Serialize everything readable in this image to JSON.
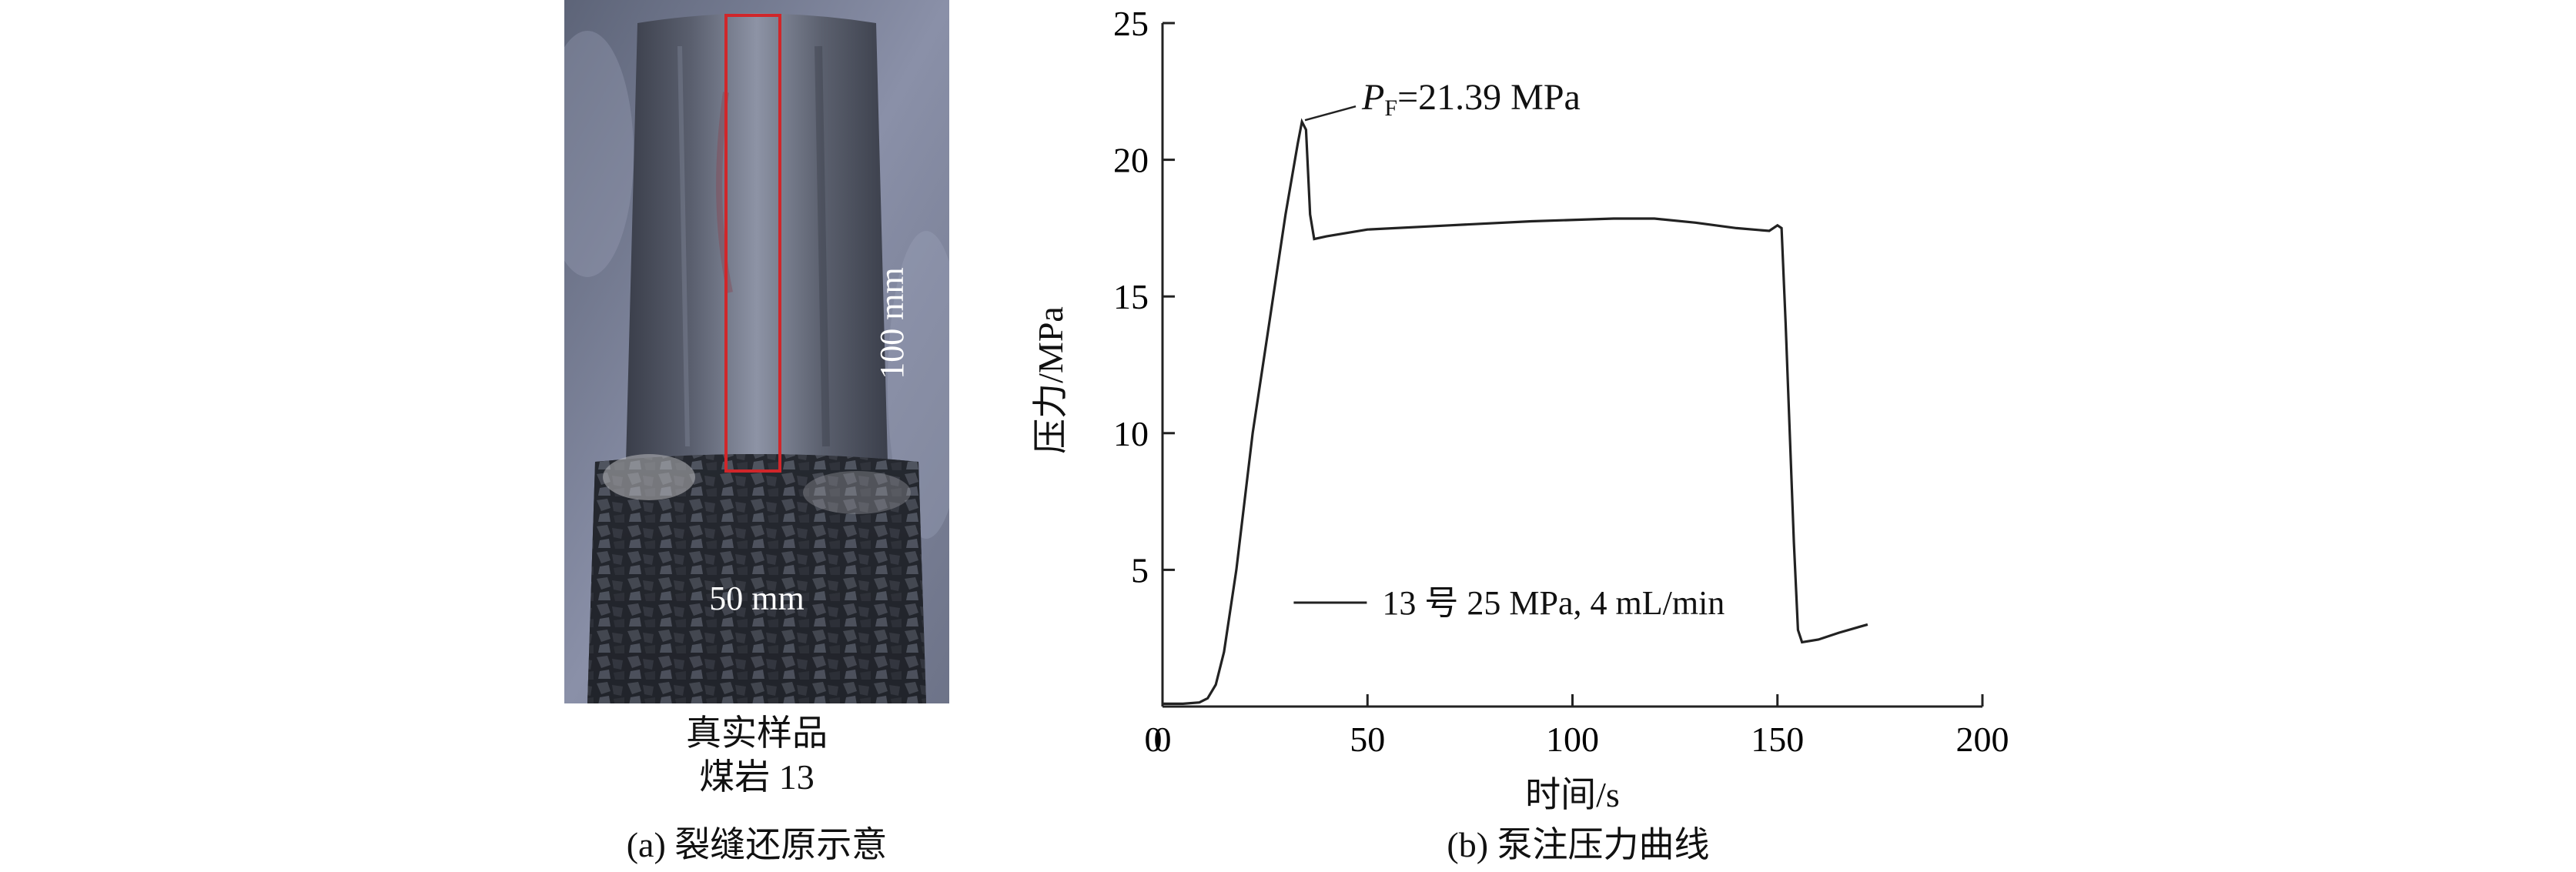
{
  "panel_a": {
    "length_label": "100 mm",
    "diameter_label": "50 mm",
    "caption_line1": "真实样品",
    "caption_line2": "煤岩 13",
    "subcaption": "(a) 裂缝还原示意"
  },
  "panel_b": {
    "subcaption": "(b) 泵注压力曲线"
  },
  "chart_data": {
    "type": "line",
    "xlabel": "时间/s",
    "ylabel": "压力/MPa",
    "xlim": [
      0,
      200
    ],
    "ylim": [
      0,
      25
    ],
    "xticks": [
      0,
      50,
      100,
      150,
      200
    ],
    "yticks": [
      5,
      10,
      15,
      20,
      25
    ],
    "grid": false,
    "legend_position": "bottom-center",
    "annotation": {
      "text_prefix": "P",
      "text_subscript": "F",
      "text_suffix": "=21.39 MPa",
      "x": 34,
      "y": 21.39
    },
    "series": [
      {
        "name": "13 号 25 MPa, 4 mL/min",
        "color": "#222222",
        "x": [
          0,
          5,
          9,
          11,
          13,
          15,
          18,
          22,
          26,
          30,
          33,
          34,
          35,
          36,
          37,
          40,
          50,
          70,
          90,
          110,
          120,
          130,
          140,
          148,
          150,
          151,
          152,
          154,
          155,
          156,
          160,
          165,
          172
        ],
        "y": [
          0.1,
          0.1,
          0.15,
          0.3,
          0.8,
          2.0,
          5.0,
          10.0,
          14.0,
          18.0,
          20.6,
          21.39,
          21.1,
          18.0,
          17.1,
          17.2,
          17.45,
          17.6,
          17.75,
          17.85,
          17.85,
          17.7,
          17.5,
          17.4,
          17.6,
          17.5,
          14.0,
          6.0,
          2.8,
          2.35,
          2.45,
          2.7,
          3.0
        ]
      }
    ]
  }
}
